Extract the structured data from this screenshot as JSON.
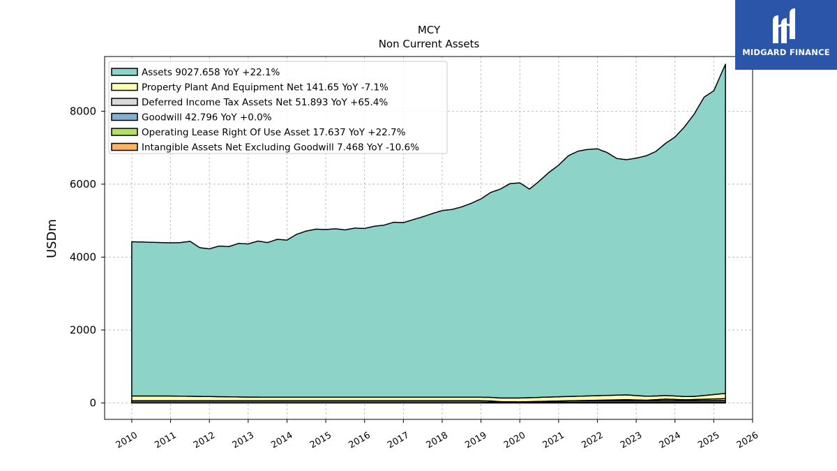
{
  "chart_data": {
    "type": "area",
    "title": "MCY",
    "subtitle": "Non Current  Assets",
    "ylabel": "USDm",
    "xlabel": "",
    "xlim": [
      2009.3,
      2026.0
    ],
    "ylim": [
      -450,
      9500
    ],
    "x_ticks": [
      "2010",
      "2011",
      "2012",
      "2013",
      "2014",
      "2015",
      "2016",
      "2017",
      "2018",
      "2019",
      "2020",
      "2021",
      "2022",
      "2023",
      "2024",
      "2025",
      "2026"
    ],
    "y_ticks": [
      0,
      2000,
      4000,
      6000,
      8000
    ],
    "grid": true,
    "legend_position": "top-left",
    "series": [
      {
        "name": "Assets  9027.658 YoY +22.1%",
        "color": "#8dd3c7",
        "x": [
          2010.0,
          2011.0,
          2011.25,
          2011.5,
          2011.75,
          2012.0,
          2012.25,
          2012.5,
          2012.75,
          2013.0,
          2013.25,
          2013.5,
          2013.75,
          2014.0,
          2014.25,
          2014.5,
          2014.75,
          2015.0,
          2015.25,
          2015.5,
          2015.75,
          2016.0,
          2016.25,
          2016.5,
          2016.75,
          2017.0,
          2017.25,
          2017.5,
          2017.75,
          2018.0,
          2018.25,
          2018.5,
          2018.75,
          2019.0,
          2019.25,
          2019.5,
          2019.75,
          2020.0,
          2020.25,
          2020.5,
          2020.75,
          2021.0,
          2021.25,
          2021.5,
          2021.75,
          2022.0,
          2022.25,
          2022.5,
          2022.75,
          2023.0,
          2023.25,
          2023.5,
          2023.75,
          2024.0,
          2024.25,
          2024.5,
          2024.75,
          2025.0,
          2025.3
        ],
        "values": [
          4230,
          4200,
          4210,
          4250,
          4080,
          4050,
          4130,
          4120,
          4210,
          4200,
          4280,
          4240,
          4330,
          4310,
          4470,
          4560,
          4610,
          4600,
          4620,
          4590,
          4640,
          4630,
          4690,
          4720,
          4800,
          4790,
          4870,
          4950,
          5040,
          5120,
          5150,
          5220,
          5320,
          5440,
          5620,
          5730,
          5880,
          5900,
          5720,
          5930,
          6160,
          6350,
          6600,
          6720,
          6760,
          6770,
          6660,
          6490,
          6450,
          6510,
          6590,
          6700,
          6910,
          7100,
          7400,
          7750,
          8180,
          8330,
          9028
        ]
      },
      {
        "name": "Property Plant And Equipment Net  141.65 YoY -7.1%",
        "color": "#ffffb3",
        "x": [
          2010.0,
          2011.0,
          2012.0,
          2013.0,
          2014.0,
          2015.0,
          2016.0,
          2017.0,
          2018.0,
          2019.0,
          2020.0,
          2021.0,
          2022.0,
          2022.75,
          2023.5,
          2024.0,
          2024.5,
          2025.3
        ],
        "values": [
          130,
          130,
          115,
          100,
          95,
          95,
          95,
          95,
          95,
          95,
          105,
          115,
          125,
          130,
          100,
          95,
          85,
          142
        ]
      },
      {
        "name": "Deferred Income Tax Assets Net  51.893 YoY +65.4%",
        "color": "#d9d9d9",
        "x": [
          2010.0,
          2012.0,
          2014.0,
          2016.0,
          2018.0,
          2019.0,
          2019.5,
          2020.0,
          2021.0,
          2022.0,
          2022.75,
          2023.25,
          2023.75,
          2024.25,
          2025.3
        ],
        "values": [
          10,
          10,
          10,
          10,
          10,
          10,
          -30,
          -35,
          -10,
          10,
          25,
          10,
          40,
          20,
          52
        ]
      },
      {
        "name": "Goodwill  42.796 YoY +0.0%",
        "color": "#80b1d3",
        "x": [
          2010.0,
          2025.3
        ],
        "values": [
          42.796,
          42.796
        ]
      },
      {
        "name": "Operating Lease Right Of Use Asset  17.637 YoY +22.7%",
        "color": "#b3de69",
        "x": [
          2010.0,
          2019.0,
          2019.25,
          2022.0,
          2025.3
        ],
        "values": [
          0,
          0,
          15,
          14,
          17.637
        ]
      },
      {
        "name": "Intangible Assets Net Excluding Goodwill  7.468 YoY -10.6%",
        "color": "#fdb462",
        "x": [
          2010.0,
          2013.0,
          2016.0,
          2019.0,
          2022.0,
          2025.3
        ],
        "values": [
          8,
          8,
          8,
          8,
          8,
          7.468
        ]
      }
    ]
  },
  "logo": {
    "text": "MIDGARD FINANCE",
    "color": "#2a55a8"
  }
}
